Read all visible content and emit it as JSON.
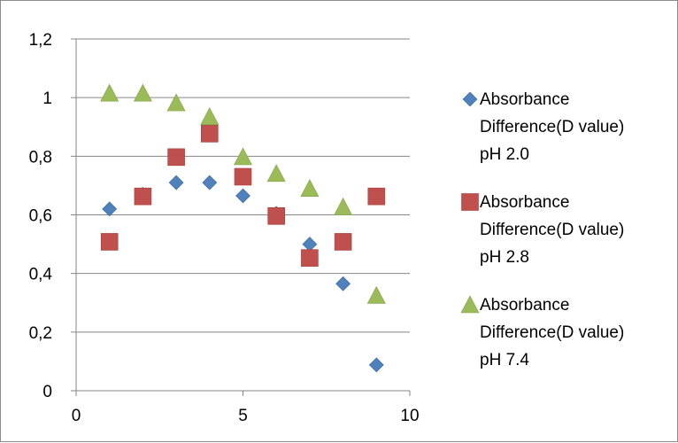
{
  "chart_data": {
    "type": "scatter",
    "title": "",
    "xlabel": "",
    "ylabel": "",
    "xlim": [
      0,
      10
    ],
    "ylim": [
      0,
      1.2
    ],
    "xticks": [
      0,
      5,
      10
    ],
    "yticks": [
      0,
      0.2,
      0.4,
      0.6,
      0.8,
      1.0,
      1.2
    ],
    "xtick_labels": [
      "0",
      "5",
      "10"
    ],
    "ytick_labels": [
      "0",
      "0,2",
      "0,4",
      "0,6",
      "0,8",
      "1",
      "1,2"
    ],
    "grid": "horizontal",
    "legend_position": "right",
    "series": [
      {
        "name": "Absorbance Difference(D value) pH 2.0",
        "legend_lines": [
          "Absorbance",
          "Difference(D value)",
          "pH 2.0"
        ],
        "marker": "diamond",
        "color": "#4f81bd",
        "x": [
          1,
          2,
          3,
          4,
          5,
          6,
          7,
          8,
          9
        ],
        "y": [
          0.62,
          0.67,
          0.71,
          0.71,
          0.665,
          0.605,
          0.5,
          0.365,
          0.088
        ]
      },
      {
        "name": "Absorbance Difference(D value) pH 2.8",
        "legend_lines": [
          "Absorbance",
          "Difference(D value)",
          "pH 2.8"
        ],
        "marker": "square",
        "color": "#c0504d",
        "x": [
          1,
          2,
          3,
          4,
          5,
          6,
          7,
          8,
          9
        ],
        "y": [
          0.508,
          0.663,
          0.797,
          0.877,
          0.73,
          0.596,
          0.453,
          0.508,
          0.663
        ]
      },
      {
        "name": "Absorbance Difference(D value) pH 7.4",
        "legend_lines": [
          "Absorbance",
          "Difference(D value)",
          "pH 7.4"
        ],
        "marker": "triangle",
        "color": "#9bbb59",
        "x": [
          1,
          2,
          3,
          4,
          5,
          6,
          7,
          8,
          9
        ],
        "y": [
          1.015,
          1.015,
          0.982,
          0.935,
          0.798,
          0.741,
          0.69,
          0.627,
          0.325
        ]
      }
    ]
  }
}
